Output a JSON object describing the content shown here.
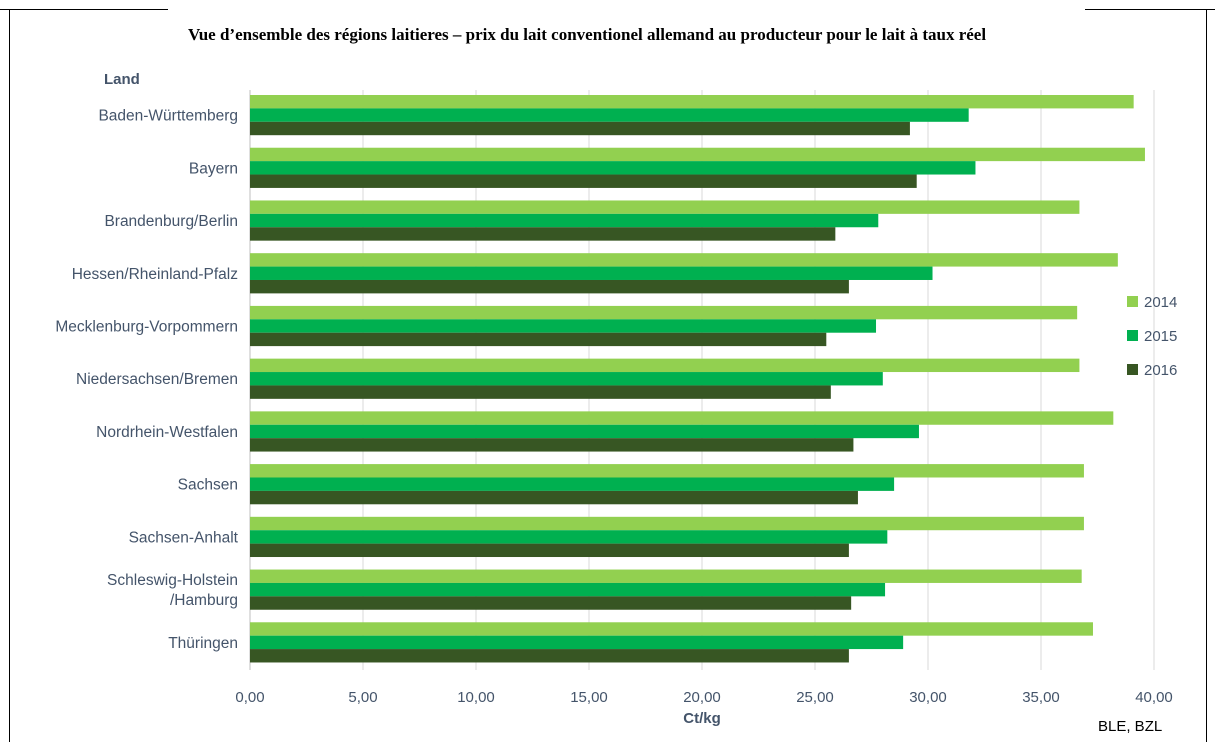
{
  "chart_data": {
    "type": "bar",
    "orientation": "horizontal",
    "title": "Vue d’ensemble des régions laitieres – prix du lait conventionel allemand au producteur pour le lait à taux réel",
    "ylabel": "Land",
    "xlabel": "Ct/kg",
    "source": "BLE, BZL",
    "xlim": [
      0,
      40
    ],
    "xticks": [
      "0,00",
      "5,00",
      "10,00",
      "15,00",
      "20,00",
      "25,00",
      "30,00",
      "35,00",
      "40,00"
    ],
    "grid": true,
    "legend_position": "right",
    "categories": [
      [
        "Baden-Württemberg"
      ],
      [
        "Bayern"
      ],
      [
        "Brandenburg/Berlin"
      ],
      [
        "Hessen/Rheinland-Pfalz"
      ],
      [
        "Mecklenburg-Vorpommern"
      ],
      [
        "Niedersachsen/Bremen"
      ],
      [
        "Nordrhein-Westfalen"
      ],
      [
        "Sachsen"
      ],
      [
        "Sachsen-Anhalt"
      ],
      [
        "Schleswig-Holstein",
        "/Hamburg"
      ],
      [
        "Thüringen"
      ]
    ],
    "series": [
      {
        "name": "2014",
        "color": "#92d050",
        "values": [
          39.1,
          39.6,
          36.7,
          38.4,
          36.6,
          36.7,
          38.2,
          36.9,
          36.9,
          36.8,
          37.3
        ]
      },
      {
        "name": "2015",
        "color": "#00b050",
        "values": [
          31.8,
          32.1,
          27.8,
          30.2,
          27.7,
          28.0,
          29.6,
          28.5,
          28.2,
          28.1,
          28.9
        ]
      },
      {
        "name": "2016",
        "color": "#375623",
        "values": [
          29.2,
          29.5,
          25.9,
          26.5,
          25.5,
          25.7,
          26.7,
          26.9,
          26.5,
          26.6,
          26.5
        ]
      }
    ]
  }
}
